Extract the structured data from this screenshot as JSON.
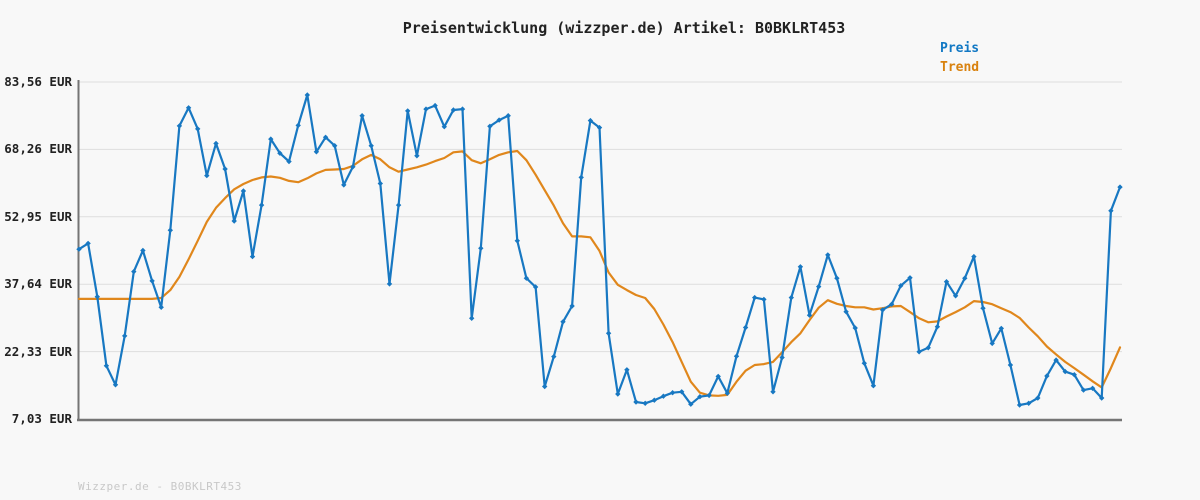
{
  "title": "Preisentwicklung (wizzper.de) Artikel: B0BKLRT453",
  "legend": {
    "preis_label": "Preis",
    "trend_label": "Trend"
  },
  "footer": "Wizzper.de - B0BKLRT453",
  "colors": {
    "price_line": "#1878c2",
    "trend_line": "#e0871c",
    "legend_price_text": "#1178c4",
    "legend_trend_text": "#d9820f",
    "axis": "#757575",
    "grid": "#dedede",
    "tick_text": "#222222",
    "title_text": "#222222",
    "footer_text": "#c8c8c8",
    "background": "#f8f8f8"
  },
  "y_axis": {
    "unit": "EUR",
    "tick_labels": [
      "83,56 EUR",
      "68,26 EUR",
      "52,95 EUR",
      "37,64 EUR",
      "22,33 EUR",
      "7,03 EUR"
    ],
    "tick_values": [
      83.56,
      68.26,
      52.95,
      37.64,
      22.33,
      7.03
    ],
    "min": 7.03,
    "max": 83.56
  },
  "chart_data": {
    "type": "line",
    "title": "Preisentwicklung (wizzper.de) Artikel: B0BKLRT453",
    "xlabel": "",
    "ylabel": "EUR",
    "ylim": [
      7.03,
      83.56
    ],
    "y_ticks": [
      83.56,
      68.26,
      52.95,
      37.64,
      22.33,
      7.03
    ],
    "grid": "horizontal",
    "legend_position": "top-right",
    "x_axis_labels_visible": false,
    "series": [
      {
        "name": "Preis",
        "color": "#1878c2",
        "marker": "diamond",
        "values": [
          45.6,
          46.9,
          34.8,
          19.1,
          14.8,
          25.9,
          40.5,
          45.3,
          38.4,
          32.4,
          49.9,
          73.6,
          77.7,
          72.9,
          62.3,
          69.6,
          63.8,
          52.0,
          58.8,
          43.9,
          55.6,
          70.6,
          67.4,
          65.5,
          73.7,
          80.6,
          67.7,
          71.0,
          69.1,
          60.2,
          64.3,
          75.9,
          69.1,
          60.5,
          37.7,
          55.6,
          77.0,
          66.8,
          77.4,
          78.2,
          73.4,
          77.2,
          77.4,
          29.9,
          45.8,
          73.5,
          74.9,
          75.9,
          47.5,
          39.0,
          37.0,
          14.4,
          21.2,
          29.1,
          32.7,
          61.9,
          74.8,
          73.2,
          26.5,
          12.7,
          18.2,
          10.9,
          10.6,
          11.3,
          12.2,
          13.0,
          13.2,
          10.4,
          12.1,
          12.4,
          16.7,
          12.9,
          21.3,
          27.8,
          34.6,
          34.2,
          13.2,
          21.0,
          34.6,
          41.6,
          30.6,
          37.1,
          44.3,
          39.0,
          31.4,
          27.7,
          19.7,
          14.6,
          31.8,
          33.1,
          37.3,
          39.1,
          22.3,
          23.2,
          28.0,
          38.2,
          35.0,
          39.0,
          43.9,
          32.2,
          24.2,
          27.6,
          19.3,
          10.2,
          10.6,
          11.8,
          16.8,
          20.4,
          17.8,
          17.1,
          13.6,
          14.0,
          11.8,
          54.3,
          59.7
        ]
      },
      {
        "name": "Trend",
        "color": "#e0871c",
        "marker": "none",
        "values": [
          34.3,
          34.3,
          34.3,
          34.3,
          34.3,
          34.3,
          34.3,
          34.3,
          34.3,
          34.5,
          36.3,
          39.3,
          43.3,
          47.5,
          51.8,
          55.0,
          57.2,
          59.2,
          60.4,
          61.3,
          61.9,
          62.1,
          61.8,
          61.1,
          60.8,
          61.7,
          62.8,
          63.6,
          63.7,
          63.8,
          64.5,
          66.0,
          67.0,
          66.0,
          64.2,
          63.2,
          63.7,
          64.2,
          64.8,
          65.6,
          66.3,
          67.6,
          67.8,
          65.8,
          65.1,
          66.0,
          67.0,
          67.6,
          67.9,
          65.8,
          62.5,
          59.0,
          55.5,
          51.5,
          48.5,
          48.5,
          48.3,
          45.2,
          40.3,
          37.5,
          36.3,
          35.2,
          34.5,
          32.0,
          28.5,
          24.5,
          20.0,
          15.5,
          13.0,
          12.4,
          12.3,
          12.5,
          15.5,
          18.0,
          19.3,
          19.5,
          20.0,
          22.2,
          24.5,
          26.5,
          29.5,
          32.3,
          34.0,
          33.2,
          32.7,
          32.4,
          32.4,
          31.9,
          32.2,
          32.6,
          32.7,
          31.3,
          29.9,
          29.0,
          29.2,
          30.3,
          31.3,
          32.4,
          33.8,
          33.6,
          33.1,
          32.2,
          31.3,
          30.0,
          27.8,
          25.8,
          23.5,
          21.7,
          20.0,
          18.6,
          17.1,
          15.6,
          14.2,
          18.6,
          23.3
        ]
      }
    ]
  }
}
